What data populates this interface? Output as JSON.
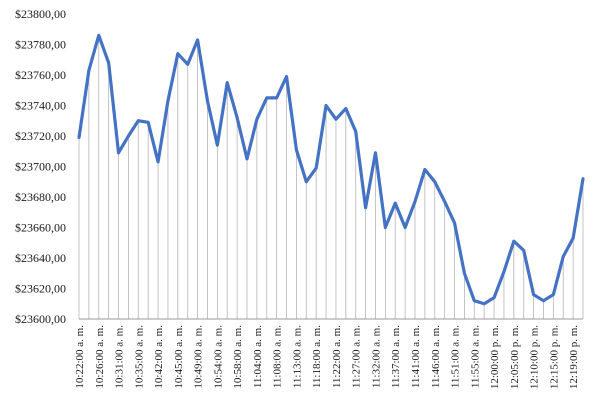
{
  "chart_data": {
    "type": "line",
    "title": "",
    "xlabel": "",
    "ylabel": "",
    "ylim": [
      23600,
      23800
    ],
    "y_ticks": [
      23600,
      23620,
      23640,
      23660,
      23680,
      23700,
      23720,
      23740,
      23760,
      23780,
      23800
    ],
    "y_tick_labels": [
      "$23600,00",
      "$23620,00",
      "$23640,00",
      "$23660,00",
      "$23680,00",
      "$23700,00",
      "$23720,00",
      "$23740,00",
      "$23760,00",
      "$23780,00",
      "$23800,00"
    ],
    "x_tick_labels": [
      "10:22:00 a. m.",
      "10:26:00 a. m.",
      "10:31:00 a. m.",
      "10:35:00 a. m.",
      "10:42:00 a. m.",
      "10:45:00 a. m.",
      "10:49:00 a. m.",
      "10:54:00 a. m.",
      "10:58:00 a. m.",
      "11:04:00 a. m.",
      "11:08:00 a. m.",
      "11:13:00 a. m.",
      "11:18:00 a. m.",
      "11:22:00 a. m.",
      "11:27:00 a. m.",
      "11:32:00 a. m.",
      "11:37:00 a. m.",
      "11:41:00 a. m.",
      "11:46:00 a. m.",
      "11:51:00 a. m.",
      "11:55:00 a. m.",
      "12:00:00 p. m.",
      "12:05:00 p. m.",
      "12:10:00 p. m.",
      "12:15:00 p. m.",
      "12:19:00 p. m."
    ],
    "grid": false,
    "drop_lines": true,
    "series": [
      {
        "color": "#4472c4",
        "values": [
          23719,
          23763,
          23786,
          23768,
          23709,
          23720,
          23730,
          23729,
          23703,
          23743,
          23774,
          23767,
          23783,
          23743,
          23714,
          23755,
          23732,
          23705,
          23731,
          23745,
          23745,
          23759,
          23711,
          23690,
          23699,
          23740,
          23731,
          23738,
          23723,
          23673,
          23709,
          23660,
          23676,
          23660,
          23677,
          23698,
          23690,
          23677,
          23663,
          23630,
          23612,
          23610,
          23614,
          23631,
          23651,
          23645,
          23616,
          23612,
          23616,
          23641,
          23653,
          23692
        ]
      }
    ]
  }
}
